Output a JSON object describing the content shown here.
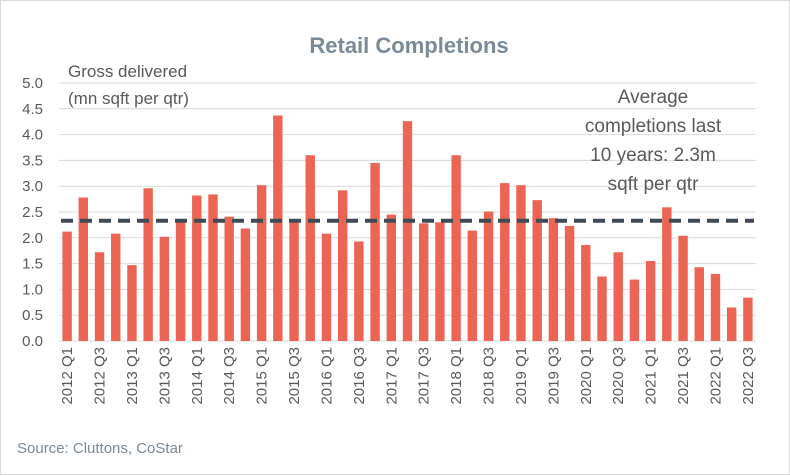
{
  "chart_data": {
    "type": "bar",
    "title": "Retail Completions",
    "ylabel_lines": [
      "Gross delivered",
      "(mn sqft per qtr)"
    ],
    "xlabel": "",
    "ylim": [
      0,
      5
    ],
    "yticks": [
      "0.0",
      "0.5",
      "1.0",
      "1.5",
      "2.0",
      "2.5",
      "3.0",
      "3.5",
      "4.0",
      "4.5",
      "5.0"
    ],
    "grid": true,
    "categories": [
      "2012 Q1",
      "2012 Q2",
      "2012 Q3",
      "2012 Q4",
      "2013 Q1",
      "2013 Q2",
      "2013 Q3",
      "2013 Q4",
      "2014 Q1",
      "2014 Q2",
      "2014 Q3",
      "2014 Q4",
      "2015 Q1",
      "2015 Q2",
      "2015 Q3",
      "2015 Q4",
      "2016 Q1",
      "2016 Q2",
      "2016 Q3",
      "2016 Q4",
      "2017 Q1",
      "2017 Q2",
      "2017 Q3",
      "2017 Q4",
      "2018 Q1",
      "2018 Q2",
      "2018 Q3",
      "2018 Q4",
      "2019 Q1",
      "2019 Q2",
      "2019 Q3",
      "2019 Q4",
      "2020 Q1",
      "2020 Q2",
      "2020 Q3",
      "2020 Q4",
      "2021 Q1",
      "2021 Q2",
      "2021 Q3",
      "2021 Q4",
      "2022 Q1",
      "2022 Q2",
      "2022 Q3"
    ],
    "labeled_categories": [
      "2012 Q1",
      "2012 Q3",
      "2013 Q1",
      "2013 Q3",
      "2014 Q1",
      "2014 Q3",
      "2015 Q1",
      "2015 Q3",
      "2016 Q1",
      "2016 Q3",
      "2017 Q1",
      "2017 Q3",
      "2018 Q1",
      "2018 Q3",
      "2019 Q1",
      "2019 Q3",
      "2020 Q1",
      "2020 Q3",
      "2021 Q1",
      "2021 Q3",
      "2022 Q1",
      "2022 Q3"
    ],
    "values": [
      2.12,
      2.78,
      1.72,
      2.08,
      1.47,
      2.96,
      2.02,
      2.3,
      2.82,
      2.84,
      2.41,
      2.18,
      3.02,
      4.37,
      2.3,
      3.6,
      2.08,
      2.92,
      1.93,
      3.45,
      2.45,
      4.26,
      2.28,
      2.3,
      3.6,
      2.14,
      2.51,
      3.06,
      3.02,
      2.73,
      2.38,
      2.23,
      1.86,
      1.25,
      1.72,
      1.19,
      1.55,
      2.59,
      2.04,
      1.43,
      1.3,
      0.65,
      0.84
    ],
    "average_line": 2.33,
    "annotation_lines": [
      "Average",
      "completions last",
      "10 years: 2.3m",
      "sqft per qtr"
    ],
    "source": "Source: Cluttons, CoStar",
    "colors": {
      "bar": "#ec6454",
      "average_line": "#3e4b57",
      "grid": "#d9d9d9",
      "title": "#7a8a99"
    }
  }
}
